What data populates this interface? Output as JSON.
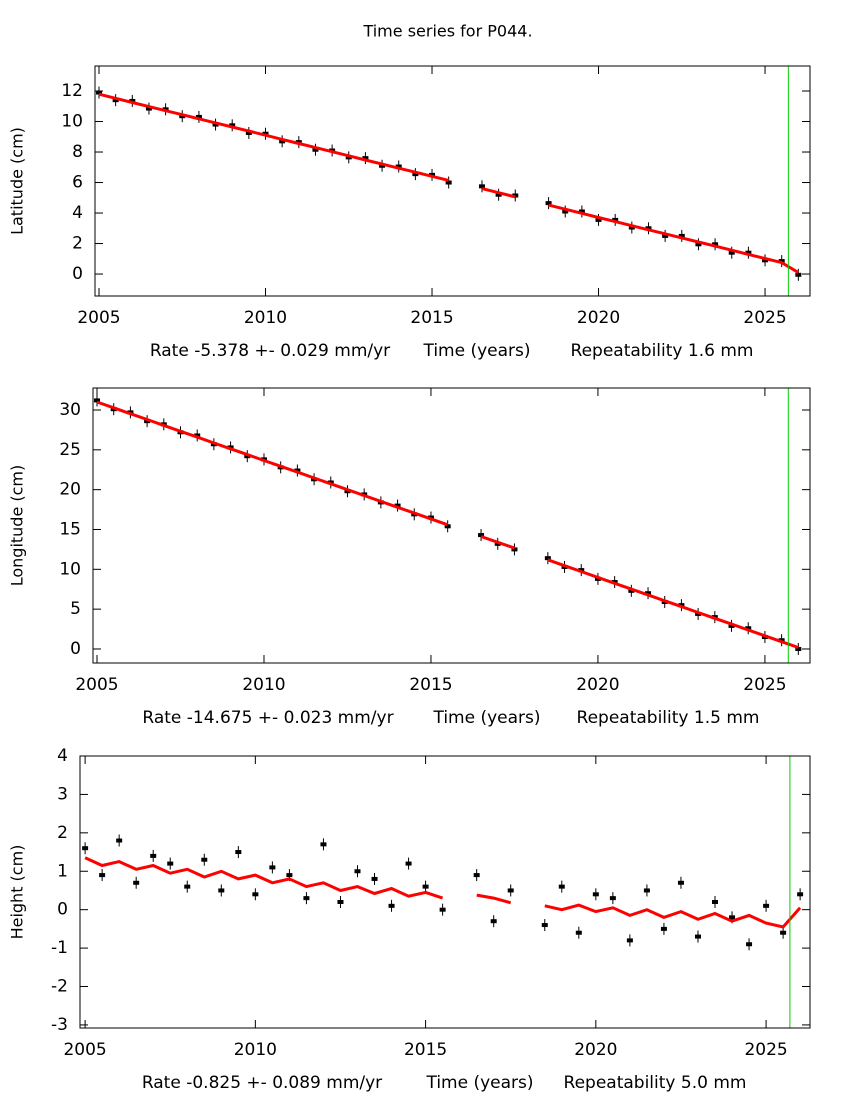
{
  "title": "Time series for P044.",
  "chart_data": [
    {
      "type": "line",
      "ylabel": "Latitude (cm)",
      "xlabel": "Time (years)",
      "rate_label": "Rate -5.378 +- 0.029 mm/yr",
      "repeatability_label": "Repeatability 1.6 mm",
      "x": [
        2005,
        2005.5,
        2006,
        2006.5,
        2007,
        2007.5,
        2008,
        2008.5,
        2009,
        2009.5,
        2010,
        2010.5,
        2011,
        2011.5,
        2012,
        2012.5,
        2013,
        2013.5,
        2014,
        2014.5,
        2015,
        2015.5,
        2016,
        2016.5,
        2017,
        2017.5,
        2018,
        2018.5,
        2019,
        2019.5,
        2020,
        2020.5,
        2021,
        2021.5,
        2022,
        2022.5,
        2023,
        2023.5,
        2024,
        2024.5,
        2025,
        2025.5,
        2026
      ],
      "series": [
        {
          "style": "points",
          "color": "#000000",
          "values": [
            11.9,
            11.4,
            11.35,
            10.85,
            10.8,
            10.35,
            10.3,
            9.8,
            9.75,
            9.25,
            9.2,
            8.7,
            8.65,
            8.15,
            8.1,
            7.65,
            7.6,
            7.1,
            7.05,
            6.55,
            6.5,
            6.0,
            null,
            5.75,
            5.2,
            5.15,
            null,
            4.65,
            4.1,
            4.1,
            3.55,
            3.55,
            3.05,
            3.0,
            2.5,
            2.5,
            1.95,
            1.95,
            1.4,
            1.4,
            0.9,
            0.85,
            -0.05
          ]
        },
        {
          "style": "line",
          "color": "#ff0000",
          "values": [
            11.79,
            11.52,
            11.25,
            10.98,
            10.71,
            10.45,
            10.18,
            9.91,
            9.64,
            9.37,
            9.1,
            8.83,
            8.56,
            8.29,
            8.02,
            7.75,
            7.48,
            7.21,
            6.94,
            6.68,
            6.41,
            6.14,
            null,
            5.6,
            5.33,
            5.06,
            null,
            4.52,
            4.25,
            3.98,
            3.71,
            3.44,
            3.17,
            2.9,
            2.64,
            2.37,
            2.1,
            1.83,
            1.56,
            1.29,
            1.02,
            0.75,
            0.1
          ]
        }
      ],
      "xlim": [
        2004.88,
        2026.35
      ],
      "ylim": [
        -1.44,
        13.64
      ],
      "xticks": [
        2005,
        2010,
        2015,
        2020,
        2025
      ],
      "yticks": [
        0,
        2,
        4,
        6,
        8,
        10,
        12
      ],
      "vline": {
        "x": 2025.7,
        "color": "#00cc00"
      }
    },
    {
      "type": "line",
      "ylabel": "Longitude (cm)",
      "xlabel": "Time (years)",
      "rate_label": "Rate -14.675 +- 0.023 mm/yr",
      "repeatability_label": "Repeatability 1.5 mm",
      "x": [
        2005,
        2005.5,
        2006,
        2006.5,
        2007,
        2007.5,
        2008,
        2008.5,
        2009,
        2009.5,
        2010,
        2010.5,
        2011,
        2011.5,
        2012,
        2012.5,
        2013,
        2013.5,
        2014,
        2014.5,
        2015,
        2015.5,
        2016,
        2016.5,
        2017,
        2017.5,
        2018,
        2018.5,
        2019,
        2019.5,
        2020,
        2020.5,
        2021,
        2021.5,
        2022,
        2022.5,
        2023,
        2023.5,
        2024,
        2024.5,
        2025,
        2025.5,
        2026
      ],
      "series": [
        {
          "style": "points",
          "color": "#000000",
          "values": [
            31.2,
            30.1,
            29.7,
            28.6,
            28.2,
            27.2,
            26.8,
            25.7,
            25.3,
            24.2,
            23.8,
            22.8,
            22.4,
            21.3,
            20.9,
            19.8,
            19.4,
            18.4,
            18.0,
            16.9,
            16.5,
            15.4,
            null,
            14.3,
            13.2,
            12.5,
            null,
            11.4,
            10.3,
            9.9,
            8.8,
            8.4,
            7.3,
            7.0,
            5.9,
            5.5,
            4.4,
            4.0,
            2.9,
            2.6,
            1.5,
            1.1,
            0.0
          ]
        },
        {
          "style": "line",
          "color": "#ff0000",
          "values": [
            31.0,
            30.27,
            29.53,
            28.8,
            28.07,
            27.33,
            26.6,
            25.86,
            25.13,
            24.4,
            23.66,
            22.93,
            22.2,
            21.46,
            20.73,
            19.99,
            19.26,
            18.53,
            17.79,
            17.06,
            16.33,
            15.59,
            null,
            14.12,
            13.39,
            12.66,
            null,
            11.19,
            10.45,
            9.72,
            8.99,
            8.25,
            7.52,
            6.79,
            6.05,
            5.32,
            4.58,
            3.85,
            3.12,
            2.38,
            1.65,
            0.92,
            0.18
          ]
        }
      ],
      "xlim": [
        2004.88,
        2026.35
      ],
      "ylim": [
        -1.76,
        32.76
      ],
      "xticks": [
        2005,
        2010,
        2015,
        2020,
        2025
      ],
      "yticks": [
        0,
        5,
        10,
        15,
        20,
        25,
        30
      ],
      "vline": {
        "x": 2025.7,
        "color": "#00cc00"
      }
    },
    {
      "type": "line",
      "ylabel": "Height (cm)",
      "xlabel": "Time (years)",
      "rate_label": "Rate -0.825 +- 0.089 mm/yr",
      "repeatability_label": "Repeatability 5.0 mm",
      "x": [
        2005,
        2005.5,
        2006,
        2006.5,
        2007,
        2007.5,
        2008,
        2008.5,
        2009,
        2009.5,
        2010,
        2010.5,
        2011,
        2011.5,
        2012,
        2012.5,
        2013,
        2013.5,
        2014,
        2014.5,
        2015,
        2015.5,
        2016,
        2016.5,
        2017,
        2017.5,
        2018,
        2018.5,
        2019,
        2019.5,
        2020,
        2020.5,
        2021,
        2021.5,
        2022,
        2022.5,
        2023,
        2023.5,
        2024,
        2024.5,
        2025,
        2025.5,
        2026
      ],
      "series": [
        {
          "style": "points",
          "color": "#000000",
          "values": [
            1.6,
            0.9,
            1.8,
            0.7,
            1.4,
            1.2,
            0.6,
            1.3,
            0.5,
            1.5,
            0.4,
            1.1,
            0.9,
            0.3,
            1.7,
            0.2,
            1.0,
            0.8,
            0.1,
            1.2,
            0.6,
            0.0,
            null,
            0.9,
            -0.3,
            0.5,
            null,
            -0.4,
            0.6,
            -0.6,
            0.4,
            0.3,
            -0.8,
            0.5,
            -0.5,
            0.7,
            -0.7,
            0.2,
            -0.2,
            -0.9,
            0.1,
            -0.6,
            0.4
          ]
        },
        {
          "style": "line",
          "color": "#ff0000",
          "values": [
            1.35,
            1.15,
            1.25,
            1.05,
            1.15,
            0.95,
            1.05,
            0.85,
            1.0,
            0.8,
            0.9,
            0.7,
            0.8,
            0.6,
            0.7,
            0.5,
            0.6,
            0.42,
            0.55,
            0.35,
            0.45,
            0.3,
            null,
            0.38,
            0.3,
            0.18,
            null,
            0.1,
            0.0,
            0.12,
            -0.05,
            0.05,
            -0.15,
            0.0,
            -0.2,
            -0.05,
            -0.25,
            -0.1,
            -0.3,
            -0.15,
            -0.35,
            -0.45,
            0.05
          ]
        }
      ],
      "xlim": [
        2004.85,
        2026.29
      ],
      "ylim": [
        -3.08,
        4
      ],
      "xticks": [
        2005,
        2010,
        2015,
        2020,
        2025
      ],
      "yticks": [
        -3,
        -2,
        -1,
        0,
        1,
        2,
        3,
        4
      ],
      "vline": {
        "x": 2025.7,
        "color": "#00cc00"
      }
    }
  ]
}
